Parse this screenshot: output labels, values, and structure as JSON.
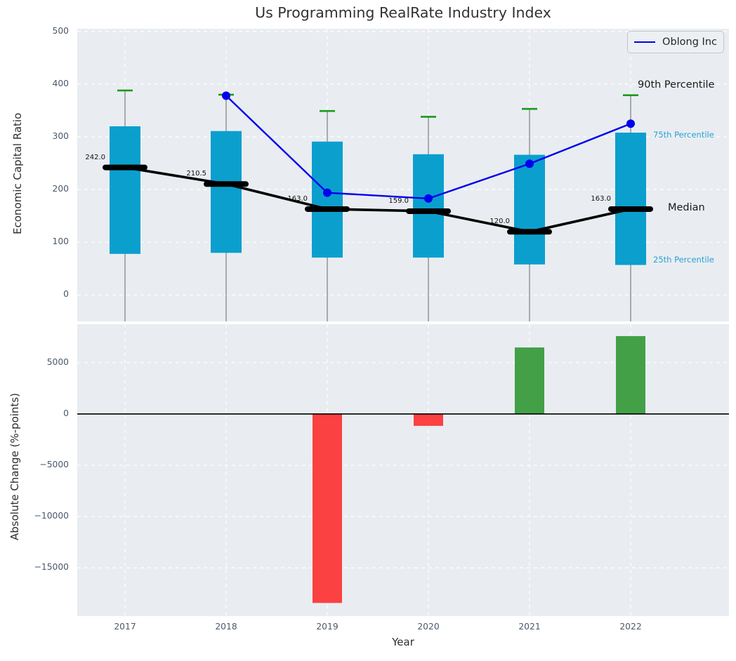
{
  "title": "Us Programming RealRate Industry Index",
  "legend": {
    "label": "Oblong Inc"
  },
  "annotations": {
    "p90": "90th Percentile",
    "p75": "75th Percentile",
    "median": "Median",
    "p25": "25th Percentile"
  },
  "colors": {
    "axes_background": "#e9edf1",
    "grid": "#ffffff",
    "iqr_box": "#0b9fce",
    "p90_cap": "#1a9a1a",
    "median_marker": "#000000",
    "oblong_line": "#0000ee",
    "stem": "#7d7d7d",
    "positive_bar": "#43a047",
    "negative_bar": "#fb4141",
    "tick_text": "#4a596b"
  },
  "chart_data": [
    {
      "type": "box",
      "title": "Us Programming RealRate Industry Index",
      "ylabel": "Economic Capital Ratio",
      "categories": [
        "2017",
        "2018",
        "2019",
        "2020",
        "2021",
        "2022"
      ],
      "ylim": [
        -50,
        505
      ],
      "yticks": [
        500,
        400,
        300,
        200,
        100,
        0
      ],
      "grid": "white dashed on light gray, legend upper right",
      "series": [
        {
          "name": "90th Percentile",
          "values": [
            388,
            380,
            349,
            338,
            353,
            379
          ]
        },
        {
          "name": "75th Percentile",
          "values": [
            320,
            311,
            291,
            267,
            266,
            308
          ]
        },
        {
          "name": "Median",
          "values": [
            242.0,
            210.5,
            163.0,
            159.0,
            120.0,
            163.0
          ]
        },
        {
          "name": "25th Percentile",
          "values": [
            78,
            80,
            71,
            71,
            58,
            57
          ]
        },
        {
          "name": "Oblong Inc",
          "values": [
            null,
            378,
            194,
            183,
            249,
            325
          ]
        }
      ],
      "median_labels": [
        "242.0",
        "210.5",
        "163.0",
        "159.0",
        "120.0",
        "163.0"
      ]
    },
    {
      "type": "bar",
      "ylabel": "Absolute Change (%-points)",
      "xlabel": "Year",
      "categories": [
        "2017",
        "2018",
        "2019",
        "2020",
        "2021",
        "2022"
      ],
      "values": [
        0,
        0,
        -18420,
        -1160,
        6480,
        7590
      ],
      "yticks": [
        5000,
        0,
        -5000,
        -10000,
        -15000
      ],
      "ylim": [
        -19700,
        8750
      ]
    }
  ]
}
